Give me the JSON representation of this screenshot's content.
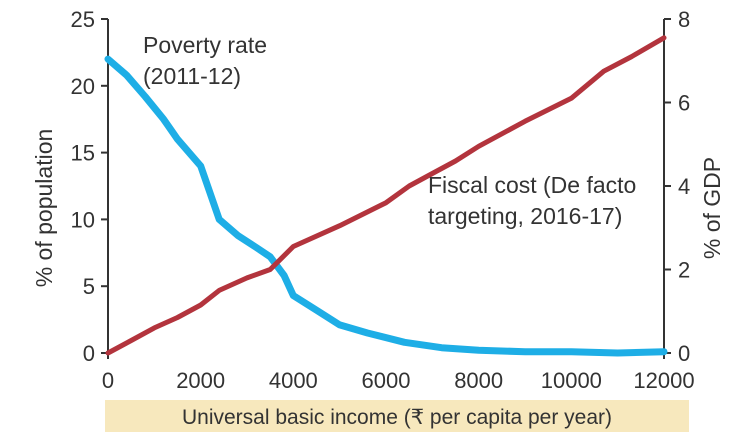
{
  "chart_data": {
    "type": "line",
    "xlabel": "Universal basic income (₹ per capita per year)",
    "ylabel_left": "% of population",
    "ylabel_right": "% of GDP",
    "xlim": [
      0,
      12000
    ],
    "ylim_left": [
      0,
      25
    ],
    "ylim_right": [
      0,
      8
    ],
    "x_ticks": [
      "0",
      "2000",
      "4000",
      "6000",
      "8000",
      "10000",
      "12000"
    ],
    "y_ticks_left": [
      "0",
      "5",
      "10",
      "15",
      "20",
      "25"
    ],
    "y_ticks_right": [
      "0",
      "2",
      "4",
      "6",
      "8"
    ],
    "grid": false,
    "series": [
      {
        "name": "Poverty rate (2011-12)",
        "axis": "left",
        "color": "#1eaee6",
        "points": [
          [
            0,
            22.0
          ],
          [
            400,
            20.8
          ],
          [
            800,
            19.2
          ],
          [
            1200,
            17.5
          ],
          [
            1500,
            16.0
          ],
          [
            2000,
            14.0
          ],
          [
            2400,
            10.0
          ],
          [
            2800,
            8.8
          ],
          [
            3200,
            7.9
          ],
          [
            3500,
            7.2
          ],
          [
            3800,
            5.8
          ],
          [
            4000,
            4.3
          ],
          [
            4500,
            3.2
          ],
          [
            5000,
            2.1
          ],
          [
            5600,
            1.5
          ],
          [
            6400,
            0.8
          ],
          [
            7200,
            0.4
          ],
          [
            8000,
            0.2
          ],
          [
            9000,
            0.1
          ],
          [
            10000,
            0.1
          ],
          [
            11000,
            0.0
          ],
          [
            12000,
            0.1
          ]
        ]
      },
      {
        "name": "Fiscal cost (De facto targeting, 2016-17)",
        "axis": "right",
        "color": "#b3343d",
        "points": [
          [
            0,
            0.0
          ],
          [
            500,
            0.3
          ],
          [
            1000,
            0.6
          ],
          [
            1500,
            0.85
          ],
          [
            2000,
            1.15
          ],
          [
            2400,
            1.5
          ],
          [
            3000,
            1.8
          ],
          [
            3500,
            2.0
          ],
          [
            4000,
            2.55
          ],
          [
            5000,
            3.05
          ],
          [
            6000,
            3.6
          ],
          [
            6500,
            4.0
          ],
          [
            7000,
            4.3
          ],
          [
            7500,
            4.6
          ],
          [
            8000,
            4.95
          ],
          [
            9000,
            5.55
          ],
          [
            10000,
            6.1
          ],
          [
            10700,
            6.75
          ],
          [
            11300,
            7.1
          ],
          [
            12000,
            7.55
          ]
        ]
      }
    ],
    "annotations": [
      {
        "lines": [
          "Poverty rate",
          "(2011-12)"
        ]
      },
      {
        "lines": [
          "Fiscal cost (De facto",
          "targeting, 2016-17)"
        ]
      }
    ],
    "colors": {
      "xlabel_band": "#f7e8bd",
      "axis": "#333333"
    }
  }
}
